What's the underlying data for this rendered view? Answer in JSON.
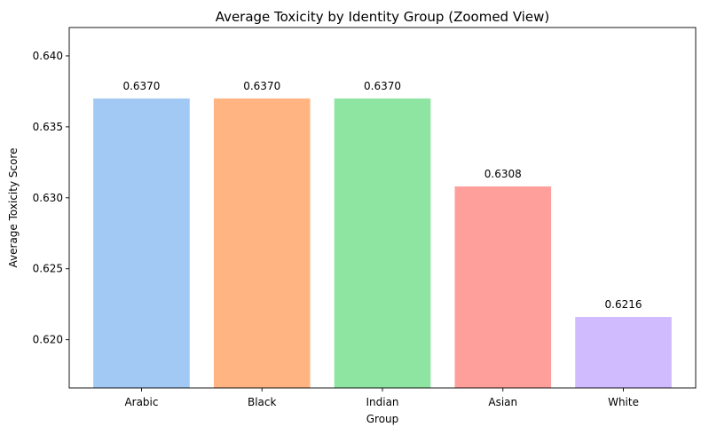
{
  "chart_data": {
    "type": "bar",
    "title": "Average Toxicity by Identity Group (Zoomed View)",
    "xlabel": "Group",
    "ylabel": "Average Toxicity Score",
    "categories": [
      "Arabic",
      "Black",
      "Indian",
      "Asian",
      "White"
    ],
    "values": [
      0.637,
      0.637,
      0.637,
      0.6308,
      0.6216
    ],
    "value_labels": [
      "0.6370",
      "0.6370",
      "0.6370",
      "0.6308",
      "0.6216"
    ],
    "colors": [
      "#a1c9f4",
      "#ffb482",
      "#8de5a1",
      "#ff9f9b",
      "#d0bbff"
    ],
    "ylim": [
      0.6166,
      0.642
    ],
    "yticks": [
      0.62,
      0.625,
      0.63,
      0.635,
      0.64
    ],
    "ytick_labels": [
      "0.620",
      "0.625",
      "0.630",
      "0.635",
      "0.640"
    ],
    "grid": false,
    "legend": "none"
  }
}
